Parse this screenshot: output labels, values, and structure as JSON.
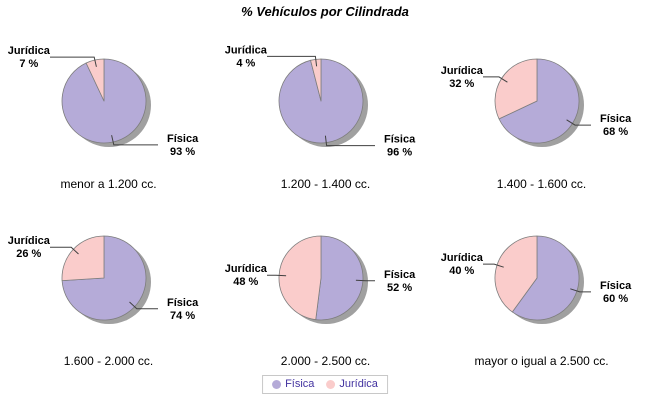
{
  "title": "% Vehículos por Cilindrada",
  "legend": {
    "items": [
      {
        "label": "Física",
        "color": "#b5abd8"
      },
      {
        "label": "Jurídica",
        "color": "#facccb"
      }
    ]
  },
  "colors": {
    "fisica": "#b5abd8",
    "juridica": "#facccb",
    "slice_border": "#7d7d7d",
    "shadow": "#a0a0a0",
    "leader_line": "#404040",
    "legend_text": "#4333a0",
    "title_text": "#000000",
    "category_text": "#000000"
  },
  "chart_data": [
    {
      "type": "pie",
      "title": "menor a 1.200 cc.",
      "slices": [
        {
          "label": "Física",
          "value": 93
        },
        {
          "label": "Jurídica",
          "value": 7
        }
      ]
    },
    {
      "type": "pie",
      "title": "1.200 - 1.400 cc.",
      "slices": [
        {
          "label": "Física",
          "value": 96
        },
        {
          "label": "Jurídica",
          "value": 4
        }
      ]
    },
    {
      "type": "pie",
      "title": "1.400 - 1.600 cc.",
      "slices": [
        {
          "label": "Física",
          "value": 68
        },
        {
          "label": "Jurídica",
          "value": 32
        }
      ]
    },
    {
      "type": "pie",
      "title": "1.600 - 2.000 cc.",
      "slices": [
        {
          "label": "Física",
          "value": 74
        },
        {
          "label": "Jurídica",
          "value": 26
        }
      ]
    },
    {
      "type": "pie",
      "title": "2.000 - 2.500 cc.",
      "slices": [
        {
          "label": "Física",
          "value": 52
        },
        {
          "label": "Jurídica",
          "value": 48
        }
      ]
    },
    {
      "type": "pie",
      "title": "mayor o igual a 2.500 cc.",
      "slices": [
        {
          "label": "Física",
          "value": 60
        },
        {
          "label": "Jurídica",
          "value": 40
        }
      ]
    }
  ]
}
